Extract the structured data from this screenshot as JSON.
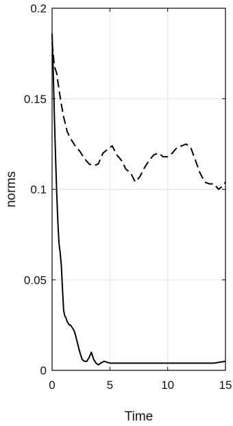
{
  "chart_data": {
    "type": "line",
    "title": "",
    "xlabel": "Time",
    "ylabel": "norms",
    "xlim": [
      0,
      15
    ],
    "ylim": [
      0,
      0.2
    ],
    "x_ticks": [
      0,
      5,
      10,
      15
    ],
    "y_ticks": [
      0,
      0.05,
      0.1,
      0.15,
      0.2
    ],
    "x_tick_labels": [
      "0",
      "5",
      "10",
      "15"
    ],
    "y_tick_labels": [
      "0",
      "0.05",
      "0.1",
      "0.15",
      "0.2"
    ],
    "grid": true,
    "series": [
      {
        "style": "solid",
        "color": "#000000",
        "x": [
          0,
          0.1,
          0.2,
          0.3,
          0.4,
          0.5,
          0.6,
          0.7,
          0.8,
          0.9,
          1.0,
          1.1,
          1.2,
          1.3,
          1.4,
          1.5,
          1.6,
          1.7,
          1.8,
          1.9,
          2.0,
          2.2,
          2.4,
          2.6,
          2.8,
          3.0,
          3.2,
          3.4,
          3.6,
          3.8,
          4.0,
          4.2,
          4.5,
          5.0,
          6.0,
          7.0,
          8.0,
          9.0,
          10.0,
          11.0,
          12.0,
          13.0,
          14.0,
          15.0
        ],
        "y": [
          0.186,
          0.165,
          0.14,
          0.118,
          0.098,
          0.082,
          0.07,
          0.065,
          0.058,
          0.045,
          0.033,
          0.03,
          0.029,
          0.027,
          0.026,
          0.025,
          0.025,
          0.024,
          0.023,
          0.022,
          0.02,
          0.015,
          0.01,
          0.006,
          0.005,
          0.005,
          0.007,
          0.01,
          0.006,
          0.004,
          0.003,
          0.004,
          0.005,
          0.004,
          0.004,
          0.004,
          0.004,
          0.004,
          0.004,
          0.004,
          0.004,
          0.004,
          0.004,
          0.005
        ]
      },
      {
        "style": "dashed",
        "color": "#000000",
        "x": [
          0,
          0.2,
          0.4,
          0.6,
          0.8,
          1.0,
          1.3,
          1.6,
          2.0,
          2.4,
          2.8,
          3.2,
          3.6,
          4.0,
          4.4,
          4.8,
          5.2,
          5.6,
          6.0,
          6.4,
          6.8,
          7.2,
          7.6,
          8.0,
          8.4,
          8.8,
          9.2,
          9.6,
          10.0,
          10.4,
          10.8,
          11.2,
          11.6,
          12.0,
          12.4,
          12.8,
          13.2,
          13.6,
          14.0,
          14.4,
          14.8,
          15.0
        ],
        "y": [
          0.181,
          0.168,
          0.164,
          0.155,
          0.147,
          0.14,
          0.132,
          0.128,
          0.124,
          0.121,
          0.117,
          0.114,
          0.113,
          0.114,
          0.12,
          0.122,
          0.124,
          0.119,
          0.116,
          0.111,
          0.109,
          0.104,
          0.107,
          0.112,
          0.116,
          0.119,
          0.12,
          0.118,
          0.118,
          0.12,
          0.123,
          0.124,
          0.125,
          0.123,
          0.116,
          0.109,
          0.104,
          0.103,
          0.103,
          0.1,
          0.102,
          0.104
        ]
      }
    ]
  }
}
